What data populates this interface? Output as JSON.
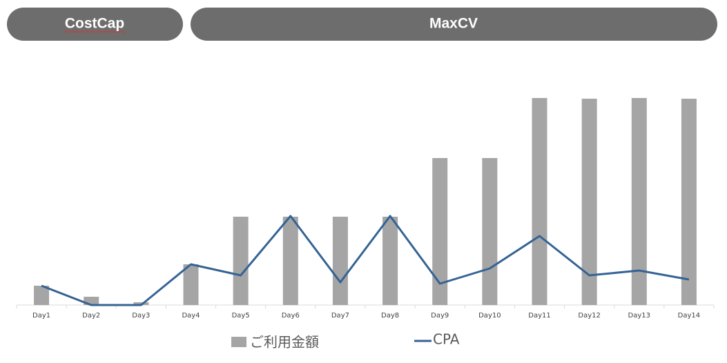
{
  "tabs": [
    {
      "label": "CostCap"
    },
    {
      "label": "MaxCV"
    }
  ],
  "chart_data": {
    "type": "combo",
    "categories": [
      "Day1",
      "Day2",
      "Day3",
      "Day4",
      "Day5",
      "Day6",
      "Day7",
      "Day8",
      "Day9",
      "Day10",
      "Day11",
      "Day12",
      "Day13",
      "Day14"
    ],
    "series": [
      {
        "name": "ご利用金額",
        "type": "bar",
        "color": "#a5a5a5",
        "values": [
          28,
          12,
          4,
          59,
          128,
          128,
          128,
          128,
          213,
          213,
          300,
          299,
          300,
          299
        ]
      },
      {
        "name": "CPA",
        "type": "line",
        "color": "#346394",
        "values": [
          28,
          0,
          0,
          59,
          43,
          129,
          33,
          129,
          31,
          53,
          100,
          43,
          50,
          37
        ]
      }
    ],
    "ylim": [
      0,
      300
    ]
  }
}
